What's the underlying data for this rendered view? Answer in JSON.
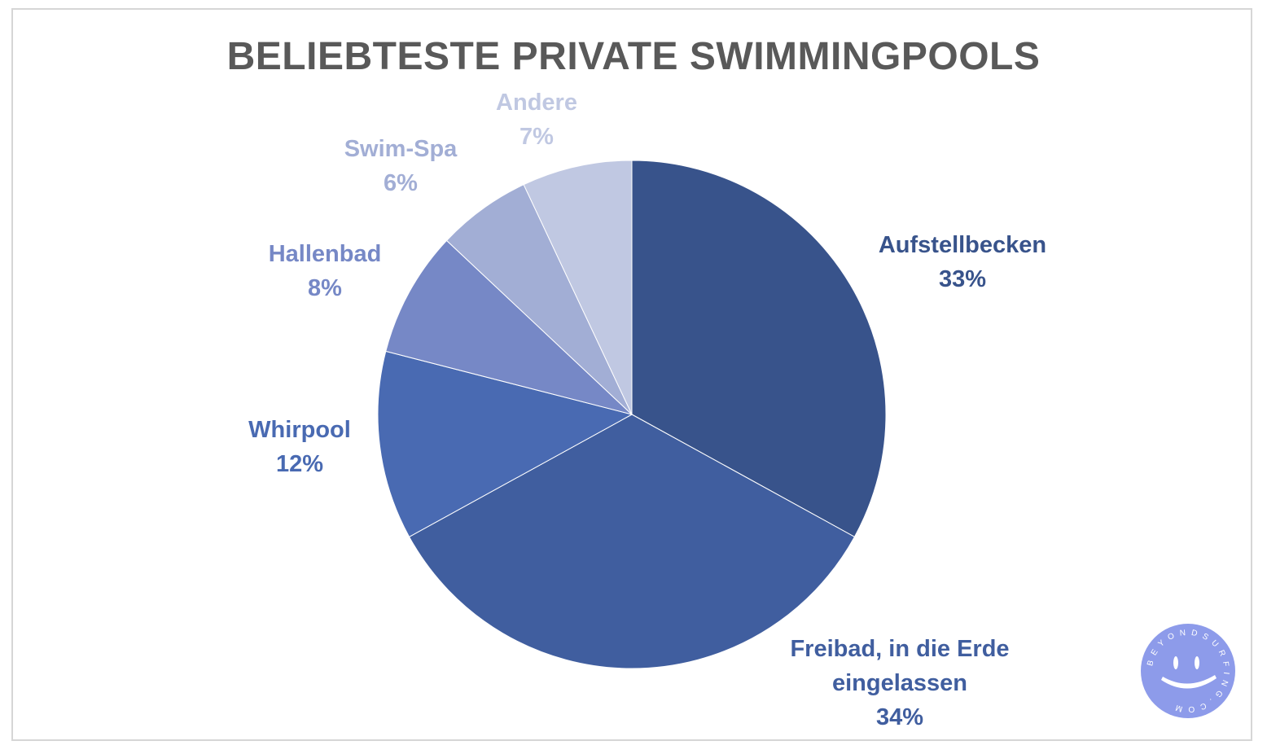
{
  "title": "BELIEBTESTE PRIVATE SWIMMINGPOOLS",
  "chart_data": {
    "type": "pie",
    "title": "BELIEBTESTE PRIVATE SWIMMINGPOOLS",
    "start_angle_deg": 0,
    "direction": "clockwise",
    "slices": [
      {
        "label": [
          "Aufstellbecken"
        ],
        "value": 33,
        "value_label": "33%",
        "color": "#38538B"
      },
      {
        "label": [
          "Freibad, in die Erde",
          "eingelassen"
        ],
        "value": 34,
        "value_label": "34%",
        "color": "#405E9F"
      },
      {
        "label": [
          "Whirpool"
        ],
        "value": 12,
        "value_label": "12%",
        "color": "#496AB2"
      },
      {
        "label": [
          "Hallenbad"
        ],
        "value": 8,
        "value_label": "8%",
        "color": "#7688C6"
      },
      {
        "label": [
          "Swim-Spa"
        ],
        "value": 6,
        "value_label": "6%",
        "color": "#A2AED5"
      },
      {
        "label": [
          "Andere"
        ],
        "value": 7,
        "value_label": "7%",
        "color": "#C0C8E2"
      }
    ]
  },
  "logo": {
    "text": "BEYONDSURFING.COM",
    "color": "#8D9BEA",
    "icon": "smiley-surf-logo"
  }
}
